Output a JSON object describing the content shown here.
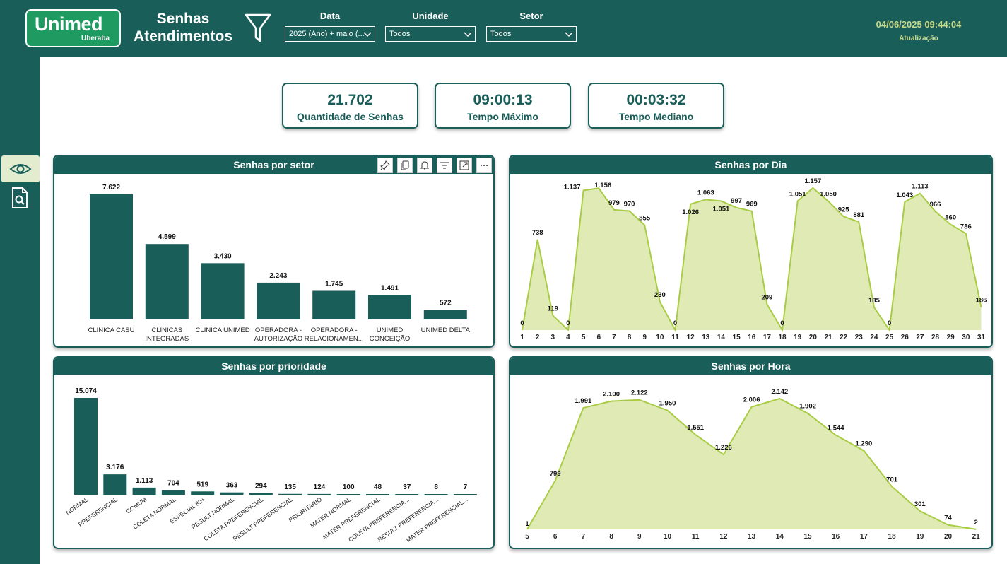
{
  "header": {
    "logo_name": "Unimed",
    "logo_sub": "Uberaba",
    "title_line1": "Senhas",
    "title_line2": "Atendimentos",
    "update_time": "04/06/2025 09:44:04",
    "update_label": "Atualização"
  },
  "slicers": [
    {
      "label": "Data",
      "value": "2025 (Ano) + maio (..."
    },
    {
      "label": "Unidade",
      "value": "Todos"
    },
    {
      "label": "Setor",
      "value": "Todos"
    }
  ],
  "colors": {
    "primary": "#1a5e5a",
    "bar": "#1a5e5a",
    "area_fill": "#dfeab4",
    "area_line": "#a9cc45",
    "logo_green": "#1f9b62",
    "update_text": "#c5d98a"
  },
  "kpis": [
    {
      "value": "21.702",
      "label": "Quantidade de Senhas"
    },
    {
      "value": "09:00:13",
      "label": "Tempo Máximo"
    },
    {
      "value": "00:03:32",
      "label": "Tempo Mediano"
    }
  ],
  "sidebar": {
    "items": [
      {
        "icon": "eye-icon",
        "active": true
      },
      {
        "icon": "document-search-icon",
        "active": false
      }
    ]
  },
  "panels": {
    "setor_title": "Senhas por setor",
    "dia_title": "Senhas por Dia",
    "prioridade_title": "Senhas por prioridade",
    "hora_title": "Senhas por Hora",
    "toolbar_icons": [
      "pin-icon",
      "copy-icon",
      "bell-icon",
      "filter-lines-icon",
      "focus-mode-icon",
      "more-options-icon"
    ]
  },
  "chart_data": [
    {
      "id": "setor",
      "type": "bar",
      "title": "Senhas por setor",
      "categories": [
        [
          "CLINICA CASU"
        ],
        [
          "CLÍNICAS",
          "INTEGRADAS"
        ],
        [
          "CLINICA UNIMED"
        ],
        [
          "OPERADORA -",
          "AUTORIZAÇÃO"
        ],
        [
          "OPERADORA -",
          "RELACIONAMEN..."
        ],
        [
          "UNIMED",
          "CONCEIÇÃO"
        ],
        [
          "UNIMED DELTA"
        ]
      ],
      "values": [
        7622,
        4599,
        3430,
        2243,
        1745,
        1491,
        572
      ],
      "labels": [
        "7.622",
        "4.599",
        "3.430",
        "2.243",
        "1.745",
        "1.491",
        "572"
      ],
      "ylim": [
        0,
        7622
      ]
    },
    {
      "id": "dia",
      "type": "area",
      "title": "Senhas por Dia",
      "x": [
        "1",
        "2",
        "3",
        "4",
        "5",
        "6",
        "7",
        "8",
        "9",
        "10",
        "11",
        "12",
        "13",
        "14",
        "15",
        "16",
        "17",
        "18",
        "19",
        "20",
        "21",
        "22",
        "23",
        "24",
        "25",
        "26",
        "27",
        "28",
        "29",
        "30",
        "31"
      ],
      "values": [
        0,
        738,
        119,
        0,
        1137,
        1156,
        979,
        970,
        855,
        230,
        0,
        1026,
        1063,
        1051,
        997,
        969,
        209,
        0,
        1051,
        1157,
        1050,
        925,
        881,
        185,
        0,
        1043,
        1113,
        966,
        860,
        786,
        186
      ],
      "labels": [
        "0",
        "738",
        "119",
        "0",
        "1.137",
        "1.156",
        "979",
        "970",
        "855",
        "230",
        "0",
        "1.026",
        "1.063",
        "1.051",
        "997",
        "969",
        "209",
        "0",
        "1.051",
        "1.157",
        "1.050",
        "925",
        "881",
        "185",
        "0",
        "1.043",
        "1.113",
        "966",
        "860",
        "786",
        "186"
      ],
      "ylim": [
        0,
        1157
      ]
    },
    {
      "id": "prioridade",
      "type": "bar",
      "title": "Senhas por prioridade",
      "categories": [
        "NORMAL",
        "PREFERENCIAL",
        "COMUM",
        "COLETA NORMAL",
        "ESPECIAL 80+",
        "RESULT NORMAL",
        "COLETA PREFERENCIAL",
        "RESULT PREFERENCIAL",
        "PRIORITARIO",
        "MATER NORMAL",
        "MATER PREFERENCIAL",
        "COLETA PREFERENCIA...",
        "RESULT PREFERENCIA...",
        "MATER PREFERENCIAL..."
      ],
      "values": [
        15074,
        3176,
        1113,
        704,
        519,
        363,
        294,
        135,
        124,
        100,
        48,
        37,
        8,
        7
      ],
      "labels": [
        "15.074",
        "3.176",
        "1.113",
        "704",
        "519",
        "363",
        "294",
        "135",
        "124",
        "100",
        "48",
        "37",
        "8",
        "7"
      ],
      "ylim": [
        0,
        15074
      ]
    },
    {
      "id": "hora",
      "type": "area",
      "title": "Senhas por Hora",
      "x": [
        "5",
        "6",
        "7",
        "8",
        "9",
        "10",
        "11",
        "12",
        "13",
        "14",
        "15",
        "16",
        "17",
        "18",
        "19",
        "20",
        "21"
      ],
      "values": [
        1,
        799,
        1991,
        2100,
        2122,
        1950,
        1551,
        1226,
        2006,
        2142,
        1902,
        1544,
        1290,
        701,
        301,
        74,
        2
      ],
      "labels": [
        "1",
        "799",
        "1.991",
        "2.100",
        "2.122",
        "1.950",
        "1.551",
        "1.226",
        "2.006",
        "2.142",
        "1.902",
        "1.544",
        "1.290",
        "701",
        "301",
        "74",
        "2"
      ],
      "ylim": [
        0,
        2142
      ]
    }
  ]
}
